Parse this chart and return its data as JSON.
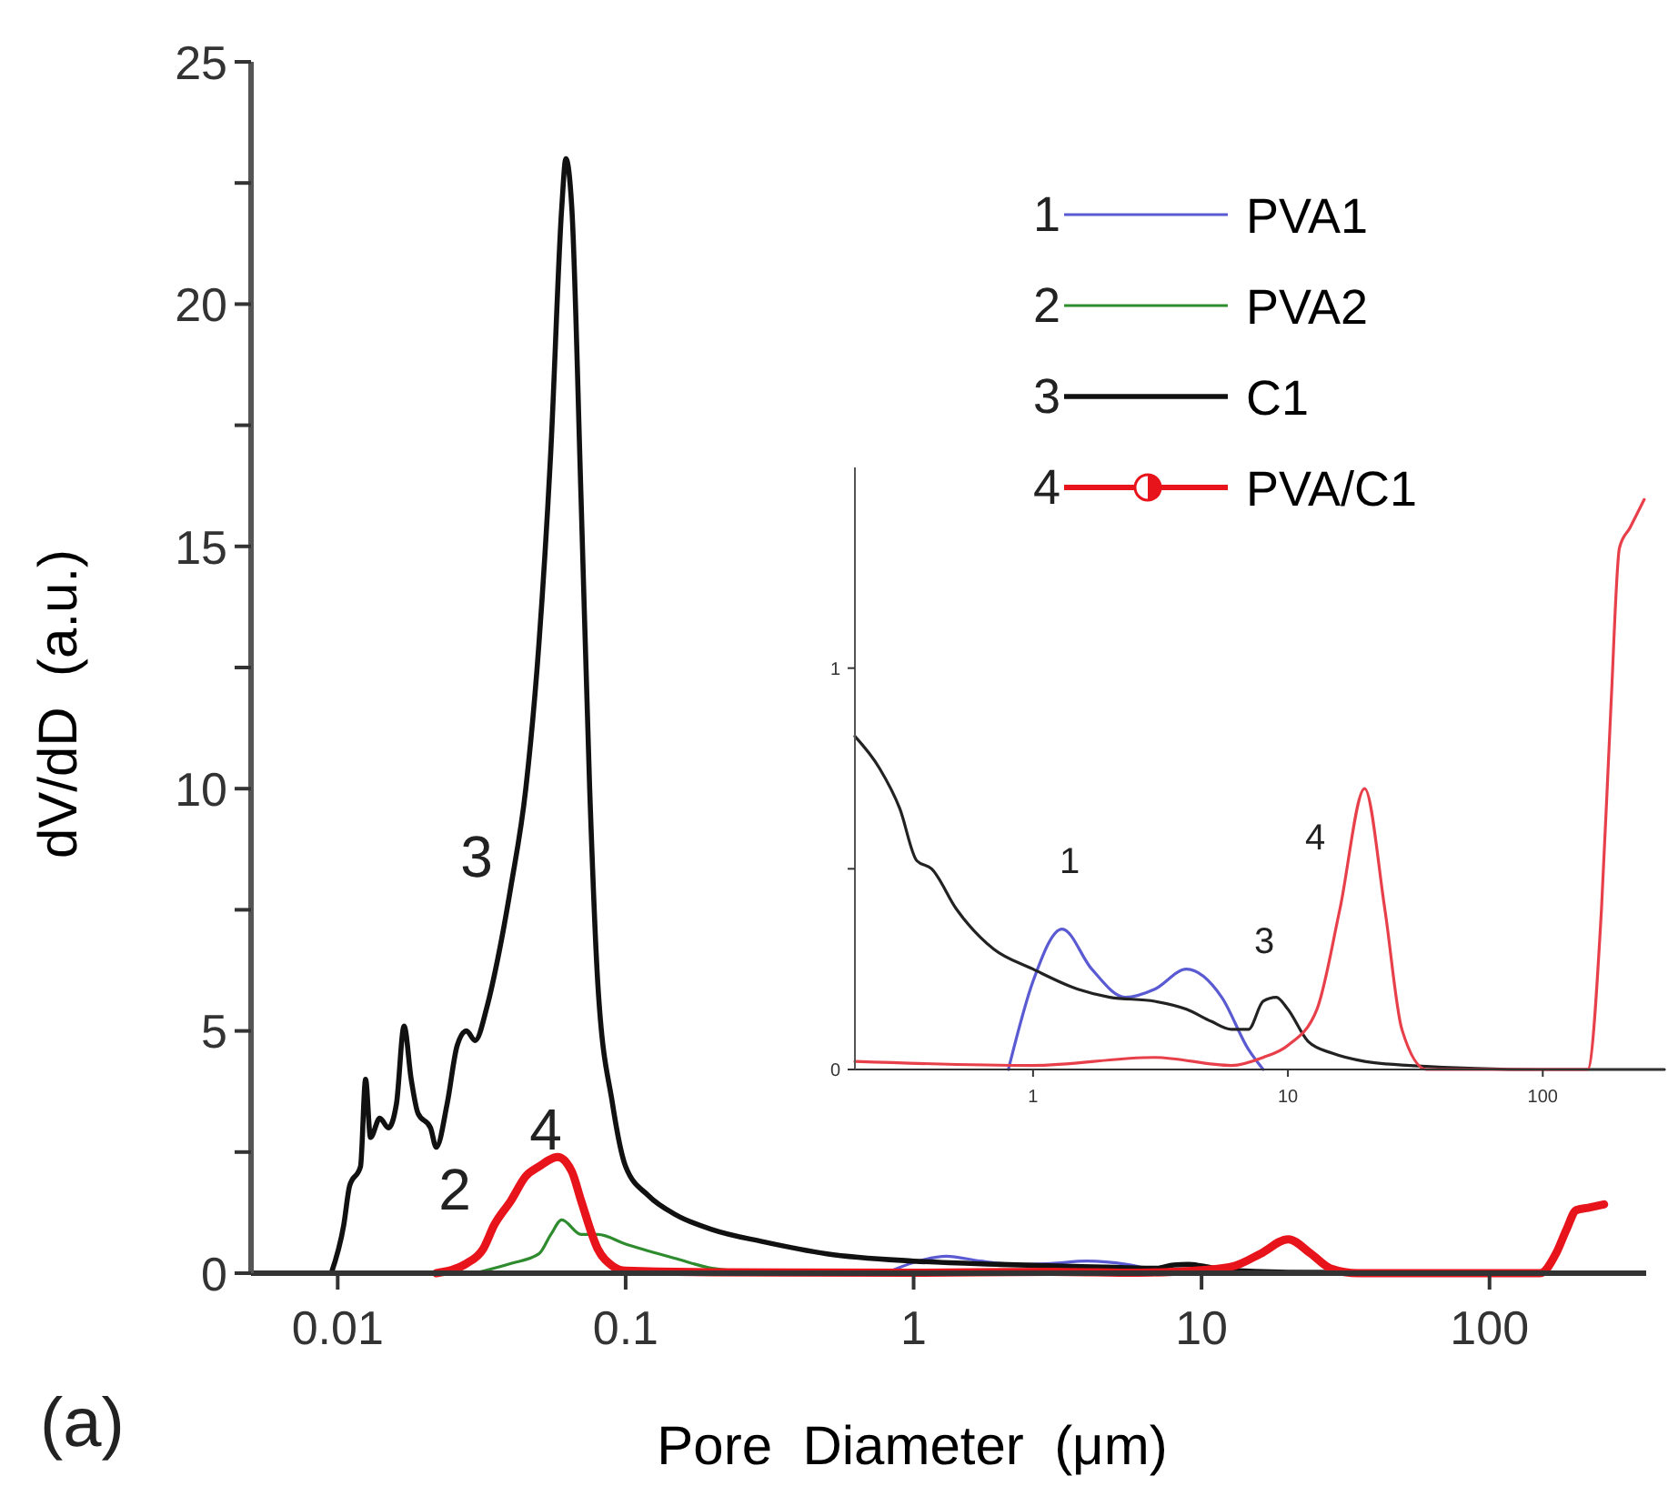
{
  "chart_data": [
    {
      "type": "line",
      "xlabel": "Pore  Diameter  (μm)",
      "ylabel": "dV/dD  (a.u.)",
      "log": "x",
      "xlim": [
        0.005,
        350
      ],
      "xticks": [
        0.01,
        0.1,
        1,
        10,
        100
      ],
      "ylim": [
        0,
        25
      ],
      "yticks": [
        0,
        {
          "value": 2.5,
          "label": null
        },
        5,
        {
          "value": 7.5,
          "label": null
        },
        10,
        {
          "value": 12.5,
          "label": null
        },
        15,
        {
          "value": 17.5,
          "label": null
        },
        20,
        {
          "value": 22.5,
          "label": null
        },
        25
      ],
      "legend": "top right",
      "grid": false,
      "series": [
        {
          "name": "PVA1",
          "color": "#5a5ad2",
          "x": [
            0.8,
            1,
            1.3,
            1.7,
            2.3,
            3,
            4,
            5.5,
            7,
            8
          ],
          "values": [
            0,
            0.22,
            0.35,
            0.25,
            0.18,
            0.2,
            0.25,
            0.18,
            0.05,
            0
          ]
        },
        {
          "name": "PVA2",
          "color": "#2e8b2e",
          "x": [
            0.03,
            0.04,
            0.05,
            0.055,
            0.06,
            0.07,
            0.08,
            0.1,
            0.15,
            0.2,
            0.3,
            0.5
          ],
          "values": [
            0,
            0.2,
            0.4,
            0.8,
            1.1,
            0.8,
            0.8,
            0.6,
            0.3,
            0.1,
            0.02,
            0
          ]
        },
        {
          "name": "C1",
          "color": "#111111",
          "x": [
            0.0095,
            0.0105,
            0.011,
            0.012,
            0.0125,
            0.013,
            0.014,
            0.015,
            0.016,
            0.017,
            0.018,
            0.019,
            0.021,
            0.022,
            0.024,
            0.026,
            0.028,
            0.03,
            0.033,
            0.036,
            0.04,
            0.045,
            0.05,
            0.055,
            0.06,
            0.062,
            0.065,
            0.07,
            0.075,
            0.08,
            0.09,
            0.1,
            0.12,
            0.15,
            0.2,
            0.3,
            0.5,
            1,
            2,
            5,
            7,
            8,
            9,
            10,
            12,
            20,
            50,
            100,
            300
          ],
          "values": [
            0,
            1.0,
            1.8,
            2.2,
            4.0,
            2.8,
            3.2,
            3.0,
            3.5,
            5.1,
            4.0,
            3.3,
            3.0,
            2.6,
            3.5,
            4.7,
            5.0,
            4.8,
            5.5,
            6.5,
            8,
            10,
            13,
            17,
            22,
            23,
            22,
            16,
            10,
            6,
            3.5,
            2.2,
            1.6,
            1.2,
            0.9,
            0.65,
            0.4,
            0.25,
            0.18,
            0.12,
            0.1,
            0.17,
            0.18,
            0.15,
            0.07,
            0.02,
            0.01,
            0,
            0
          ]
        },
        {
          "name": "PVA/C1",
          "color": "#e8141b",
          "x": [
            0.022,
            0.028,
            0.032,
            0.035,
            0.04,
            0.045,
            0.05,
            0.058,
            0.065,
            0.07,
            0.08,
            0.09,
            0.1,
            0.2,
            1,
            3,
            6,
            8,
            10,
            13,
            16,
            20,
            24,
            28,
            35,
            100,
            150,
            170,
            185,
            200,
            220,
            250
          ],
          "values": [
            0,
            0.2,
            0.5,
            1.0,
            1.5,
            2.0,
            2.2,
            2.4,
            2.1,
            1.5,
            0.5,
            0.15,
            0.05,
            0.02,
            0.01,
            0.03,
            0.01,
            0.03,
            0.06,
            0.15,
            0.4,
            0.7,
            0.4,
            0.1,
            0,
            0,
            0,
            0.4,
            0.9,
            1.3,
            1.35,
            1.42
          ]
        }
      ],
      "annotations": [
        "3",
        "2",
        "4",
        "(a)",
        "1",
        "2",
        "3",
        "4"
      ]
    },
    {
      "type": "line",
      "log": "x",
      "xlim": [
        0.2,
        300
      ],
      "xticks": [
        1,
        10,
        100
      ],
      "ylim": [
        0,
        1.5
      ],
      "yticks": [
        0,
        {
          "value": 0.5,
          "label": null
        },
        1
      ],
      "grid": false,
      "series": [
        {
          "color": "#5a5ad2",
          "x": [
            0.8,
            1,
            1.3,
            1.7,
            2.3,
            3,
            4,
            5.5,
            7,
            8
          ],
          "values": [
            0,
            0.22,
            0.35,
            0.25,
            0.18,
            0.2,
            0.25,
            0.18,
            0.05,
            0
          ]
        },
        {
          "color": "#222222",
          "x": [
            0.2,
            0.25,
            0.3,
            0.35,
            0.4,
            0.5,
            0.7,
            1,
            1.5,
            2,
            3,
            4,
            5,
            6,
            7,
            8,
            9,
            10,
            12,
            15,
            20,
            30,
            100,
            300
          ],
          "values": [
            0.83,
            0.75,
            0.65,
            0.52,
            0.5,
            0.4,
            0.3,
            0.25,
            0.2,
            0.18,
            0.17,
            0.15,
            0.12,
            0.1,
            0.1,
            0.17,
            0.18,
            0.15,
            0.07,
            0.04,
            0.02,
            0.01,
            0,
            0
          ]
        },
        {
          "color": "#e8404a",
          "x": [
            0.2,
            1,
            3,
            6,
            8,
            10,
            13,
            16,
            20,
            24,
            28,
            35,
            100,
            150,
            170,
            185,
            200,
            220,
            250
          ],
          "values": [
            0.02,
            0.01,
            0.03,
            0.01,
            0.03,
            0.06,
            0.15,
            0.4,
            0.7,
            0.4,
            0.1,
            0,
            0,
            0,
            0.4,
            0.9,
            1.3,
            1.35,
            1.42
          ]
        }
      ],
      "annotations": [
        "1",
        "3",
        "4"
      ]
    }
  ]
}
